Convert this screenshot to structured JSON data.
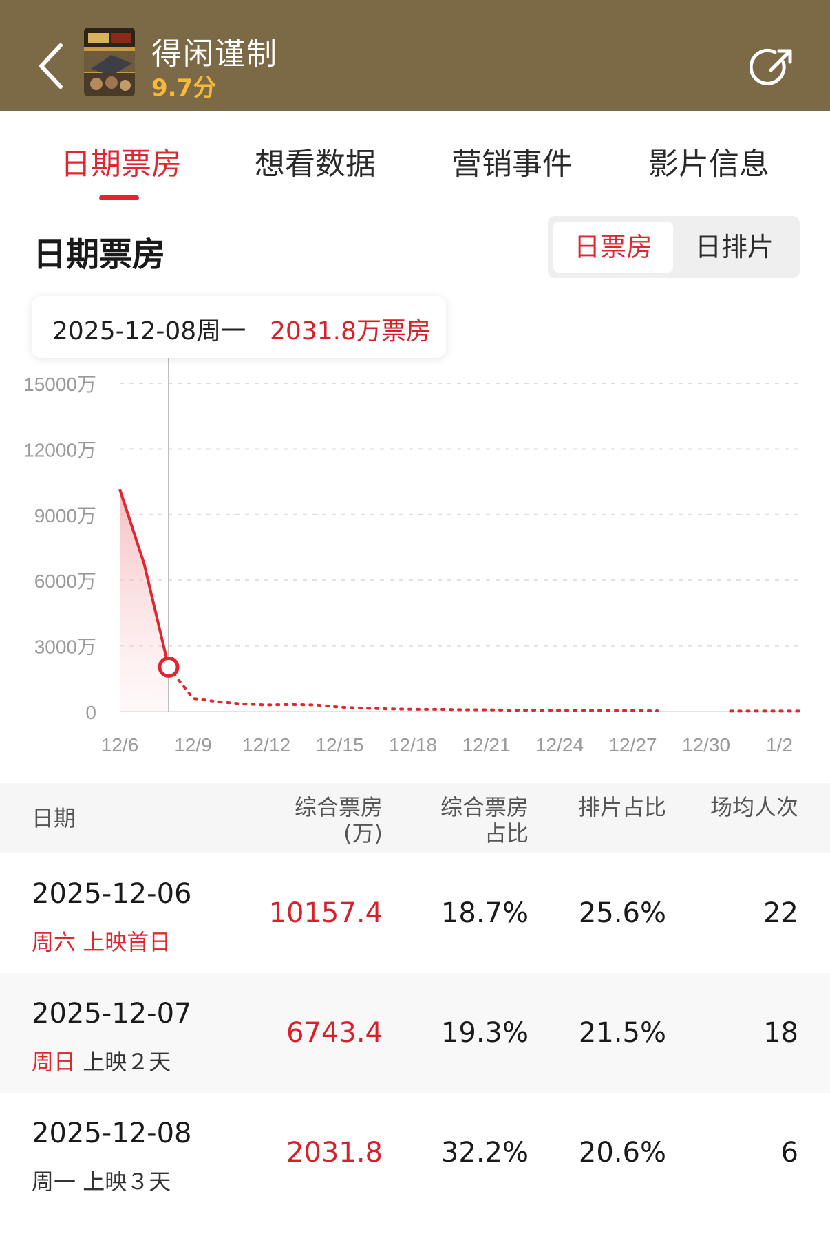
{
  "header": {
    "title": "得闲谨制",
    "score": "9.7分"
  },
  "tabs": [
    {
      "label": "日期票房",
      "active": true
    },
    {
      "label": "想看数据",
      "active": false
    },
    {
      "label": "营销事件",
      "active": false
    },
    {
      "label": "影片信息",
      "active": false
    }
  ],
  "section": {
    "title": "日期票房",
    "toggle": [
      "日票房",
      "日排片"
    ],
    "toggle_selected": "日票房"
  },
  "tooltip": {
    "date": "2025-12-08周一",
    "value": "2031.8万票房"
  },
  "colors": {
    "header_bg": "#7c6a47",
    "accent": "#e0262f",
    "score": "#f6b93a"
  },
  "chart_data": {
    "type": "line",
    "x": [
      "2025-12-06",
      "2025-12-07",
      "2025-12-08",
      "2025-12-09",
      "2025-12-10",
      "2025-12-11",
      "2025-12-12",
      "2025-12-13",
      "2025-12-14",
      "2025-12-15",
      "2025-12-16",
      "2025-12-17",
      "2025-12-18",
      "2025-12-19",
      "2025-12-20",
      "2025-12-21",
      "2025-12-22",
      "2025-12-23",
      "2025-12-24",
      "2025-12-25",
      "2025-12-26",
      "2025-12-27",
      "2025-12-28",
      "2025-12-31",
      "2026-01-01",
      "2026-01-02",
      "2026-01-03"
    ],
    "series": [
      {
        "values": [
          10157.4,
          6743.4,
          2031.8,
          600,
          450,
          350,
          300,
          320,
          300,
          200,
          150,
          120,
          100,
          100,
          80,
          80,
          60,
          60,
          50,
          50,
          40,
          40,
          30,
          20,
          20,
          20,
          20
        ]
      }
    ],
    "x_tick_labels": [
      "12/6",
      "12/9",
      "12/12",
      "12/15",
      "12/18",
      "12/21",
      "12/24",
      "12/27",
      "12/30",
      "1/2"
    ],
    "y_tick_labels": [
      "0",
      "3000万",
      "6000万",
      "9000万",
      "12000万",
      "15000万"
    ],
    "ylim": [
      0,
      15000
    ],
    "actual_through": "2025-12-08",
    "highlighted": "2025-12-08",
    "grid": true
  },
  "table": {
    "headers": [
      [
        "日期"
      ],
      [
        "综合票房",
        "(万)"
      ],
      [
        "综合票房",
        "占比"
      ],
      [
        "排片占比"
      ],
      [
        "场均人次"
      ]
    ],
    "rows": [
      {
        "date": "2025-12-06",
        "weekday": "周六",
        "weekday_red": true,
        "note": "上映首日",
        "note_red": true,
        "box": "10157.4",
        "box_share": "18.7%",
        "schedule_share": "25.6%",
        "avg_people": "22"
      },
      {
        "date": "2025-12-07",
        "weekday": "周日",
        "weekday_red": true,
        "note": "上映２天",
        "note_red": false,
        "box": "6743.4",
        "box_share": "19.3%",
        "schedule_share": "21.5%",
        "avg_people": "18"
      },
      {
        "date": "2025-12-08",
        "weekday": "周一",
        "weekday_red": false,
        "note": "上映３天",
        "note_red": false,
        "box": "2031.8",
        "box_share": "32.2%",
        "schedule_share": "20.6%",
        "avg_people": "6"
      }
    ]
  }
}
